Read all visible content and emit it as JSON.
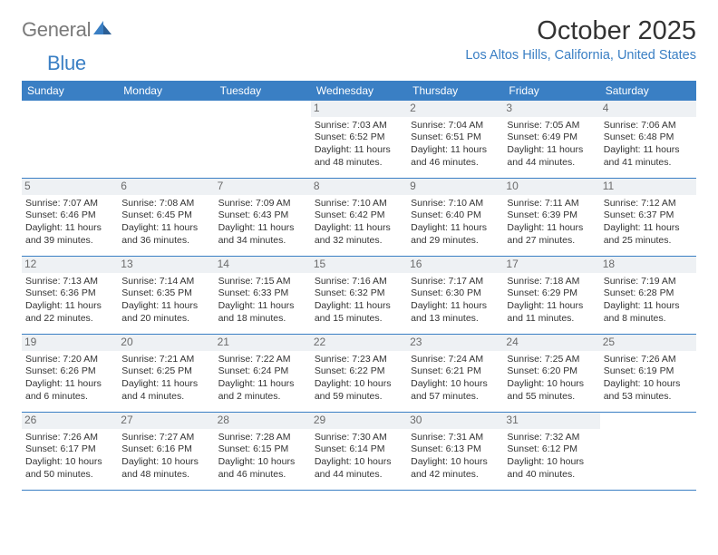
{
  "logo": {
    "word1": "General",
    "word2": "Blue"
  },
  "title": "October 2025",
  "location": "Los Altos Hills, California, United States",
  "colors": {
    "header_bg": "#3a7fc4",
    "header_text": "#ffffff",
    "daynum_bg": "#eef1f4",
    "daynum_text": "#6b6b6b",
    "border": "#3a7fc4",
    "logo_gray": "#7a7a7a",
    "logo_blue": "#3a7fc4"
  },
  "weekdays": [
    "Sunday",
    "Monday",
    "Tuesday",
    "Wednesday",
    "Thursday",
    "Friday",
    "Saturday"
  ],
  "weeks": [
    [
      {
        "empty": true
      },
      {
        "empty": true
      },
      {
        "empty": true
      },
      {
        "num": "1",
        "sunrise": "Sunrise: 7:03 AM",
        "sunset": "Sunset: 6:52 PM",
        "day1": "Daylight: 11 hours",
        "day2": "and 48 minutes."
      },
      {
        "num": "2",
        "sunrise": "Sunrise: 7:04 AM",
        "sunset": "Sunset: 6:51 PM",
        "day1": "Daylight: 11 hours",
        "day2": "and 46 minutes."
      },
      {
        "num": "3",
        "sunrise": "Sunrise: 7:05 AM",
        "sunset": "Sunset: 6:49 PM",
        "day1": "Daylight: 11 hours",
        "day2": "and 44 minutes."
      },
      {
        "num": "4",
        "sunrise": "Sunrise: 7:06 AM",
        "sunset": "Sunset: 6:48 PM",
        "day1": "Daylight: 11 hours",
        "day2": "and 41 minutes."
      }
    ],
    [
      {
        "num": "5",
        "sunrise": "Sunrise: 7:07 AM",
        "sunset": "Sunset: 6:46 PM",
        "day1": "Daylight: 11 hours",
        "day2": "and 39 minutes."
      },
      {
        "num": "6",
        "sunrise": "Sunrise: 7:08 AM",
        "sunset": "Sunset: 6:45 PM",
        "day1": "Daylight: 11 hours",
        "day2": "and 36 minutes."
      },
      {
        "num": "7",
        "sunrise": "Sunrise: 7:09 AM",
        "sunset": "Sunset: 6:43 PM",
        "day1": "Daylight: 11 hours",
        "day2": "and 34 minutes."
      },
      {
        "num": "8",
        "sunrise": "Sunrise: 7:10 AM",
        "sunset": "Sunset: 6:42 PM",
        "day1": "Daylight: 11 hours",
        "day2": "and 32 minutes."
      },
      {
        "num": "9",
        "sunrise": "Sunrise: 7:10 AM",
        "sunset": "Sunset: 6:40 PM",
        "day1": "Daylight: 11 hours",
        "day2": "and 29 minutes."
      },
      {
        "num": "10",
        "sunrise": "Sunrise: 7:11 AM",
        "sunset": "Sunset: 6:39 PM",
        "day1": "Daylight: 11 hours",
        "day2": "and 27 minutes."
      },
      {
        "num": "11",
        "sunrise": "Sunrise: 7:12 AM",
        "sunset": "Sunset: 6:37 PM",
        "day1": "Daylight: 11 hours",
        "day2": "and 25 minutes."
      }
    ],
    [
      {
        "num": "12",
        "sunrise": "Sunrise: 7:13 AM",
        "sunset": "Sunset: 6:36 PM",
        "day1": "Daylight: 11 hours",
        "day2": "and 22 minutes."
      },
      {
        "num": "13",
        "sunrise": "Sunrise: 7:14 AM",
        "sunset": "Sunset: 6:35 PM",
        "day1": "Daylight: 11 hours",
        "day2": "and 20 minutes."
      },
      {
        "num": "14",
        "sunrise": "Sunrise: 7:15 AM",
        "sunset": "Sunset: 6:33 PM",
        "day1": "Daylight: 11 hours",
        "day2": "and 18 minutes."
      },
      {
        "num": "15",
        "sunrise": "Sunrise: 7:16 AM",
        "sunset": "Sunset: 6:32 PM",
        "day1": "Daylight: 11 hours",
        "day2": "and 15 minutes."
      },
      {
        "num": "16",
        "sunrise": "Sunrise: 7:17 AM",
        "sunset": "Sunset: 6:30 PM",
        "day1": "Daylight: 11 hours",
        "day2": "and 13 minutes."
      },
      {
        "num": "17",
        "sunrise": "Sunrise: 7:18 AM",
        "sunset": "Sunset: 6:29 PM",
        "day1": "Daylight: 11 hours",
        "day2": "and 11 minutes."
      },
      {
        "num": "18",
        "sunrise": "Sunrise: 7:19 AM",
        "sunset": "Sunset: 6:28 PM",
        "day1": "Daylight: 11 hours",
        "day2": "and 8 minutes."
      }
    ],
    [
      {
        "num": "19",
        "sunrise": "Sunrise: 7:20 AM",
        "sunset": "Sunset: 6:26 PM",
        "day1": "Daylight: 11 hours",
        "day2": "and 6 minutes."
      },
      {
        "num": "20",
        "sunrise": "Sunrise: 7:21 AM",
        "sunset": "Sunset: 6:25 PM",
        "day1": "Daylight: 11 hours",
        "day2": "and 4 minutes."
      },
      {
        "num": "21",
        "sunrise": "Sunrise: 7:22 AM",
        "sunset": "Sunset: 6:24 PM",
        "day1": "Daylight: 11 hours",
        "day2": "and 2 minutes."
      },
      {
        "num": "22",
        "sunrise": "Sunrise: 7:23 AM",
        "sunset": "Sunset: 6:22 PM",
        "day1": "Daylight: 10 hours",
        "day2": "and 59 minutes."
      },
      {
        "num": "23",
        "sunrise": "Sunrise: 7:24 AM",
        "sunset": "Sunset: 6:21 PM",
        "day1": "Daylight: 10 hours",
        "day2": "and 57 minutes."
      },
      {
        "num": "24",
        "sunrise": "Sunrise: 7:25 AM",
        "sunset": "Sunset: 6:20 PM",
        "day1": "Daylight: 10 hours",
        "day2": "and 55 minutes."
      },
      {
        "num": "25",
        "sunrise": "Sunrise: 7:26 AM",
        "sunset": "Sunset: 6:19 PM",
        "day1": "Daylight: 10 hours",
        "day2": "and 53 minutes."
      }
    ],
    [
      {
        "num": "26",
        "sunrise": "Sunrise: 7:26 AM",
        "sunset": "Sunset: 6:17 PM",
        "day1": "Daylight: 10 hours",
        "day2": "and 50 minutes."
      },
      {
        "num": "27",
        "sunrise": "Sunrise: 7:27 AM",
        "sunset": "Sunset: 6:16 PM",
        "day1": "Daylight: 10 hours",
        "day2": "and 48 minutes."
      },
      {
        "num": "28",
        "sunrise": "Sunrise: 7:28 AM",
        "sunset": "Sunset: 6:15 PM",
        "day1": "Daylight: 10 hours",
        "day2": "and 46 minutes."
      },
      {
        "num": "29",
        "sunrise": "Sunrise: 7:30 AM",
        "sunset": "Sunset: 6:14 PM",
        "day1": "Daylight: 10 hours",
        "day2": "and 44 minutes."
      },
      {
        "num": "30",
        "sunrise": "Sunrise: 7:31 AM",
        "sunset": "Sunset: 6:13 PM",
        "day1": "Daylight: 10 hours",
        "day2": "and 42 minutes."
      },
      {
        "num": "31",
        "sunrise": "Sunrise: 7:32 AM",
        "sunset": "Sunset: 6:12 PM",
        "day1": "Daylight: 10 hours",
        "day2": "and 40 minutes."
      },
      {
        "empty": true
      }
    ]
  ]
}
